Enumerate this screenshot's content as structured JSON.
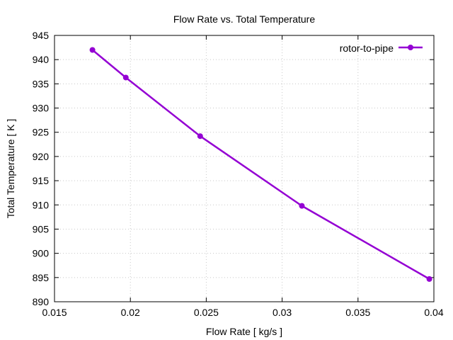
{
  "chart_data": {
    "type": "line",
    "title": "Flow Rate vs. Total Temperature",
    "xlabel": "Flow Rate [ kg/s ]",
    "ylabel": "Total Temperature [ K ]",
    "xlim": [
      0.015,
      0.04
    ],
    "ylim": [
      890,
      945
    ],
    "xticks": [
      "0.015",
      "0.02",
      "0.025",
      "0.03",
      "0.035",
      "0.04"
    ],
    "yticks": [
      "890",
      "895",
      "900",
      "905",
      "910",
      "915",
      "920",
      "925",
      "930",
      "935",
      "940",
      "945"
    ],
    "grid": true,
    "legend_position": "top-right",
    "series": [
      {
        "name": "rotor-to-pipe",
        "color": "#9400d3",
        "x": [
          0.0175,
          0.0197,
          0.0246,
          0.0313,
          0.0397
        ],
        "y": [
          942.0,
          936.3,
          924.2,
          909.8,
          894.7
        ]
      }
    ]
  }
}
